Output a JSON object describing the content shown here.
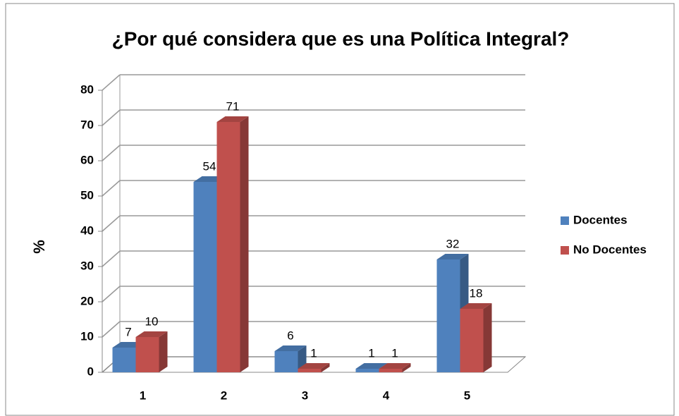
{
  "chart_data": {
    "type": "bar",
    "title": "¿Por qué considera que es una Política Integral?",
    "y_label": "%",
    "categories": [
      "1",
      "2",
      "3",
      "4",
      "5"
    ],
    "series": [
      {
        "name": "Docentes",
        "color": "#4f81bd",
        "values": [
          7,
          54,
          6,
          1,
          32
        ]
      },
      {
        "name": "No Docentes",
        "color": "#c0504d",
        "values": [
          10,
          71,
          1,
          1,
          18
        ]
      }
    ],
    "ylim": [
      0,
      80
    ],
    "yticks": [
      0,
      10,
      20,
      30,
      40,
      50,
      60,
      70,
      80
    ],
    "grid": true,
    "legend": "right"
  }
}
